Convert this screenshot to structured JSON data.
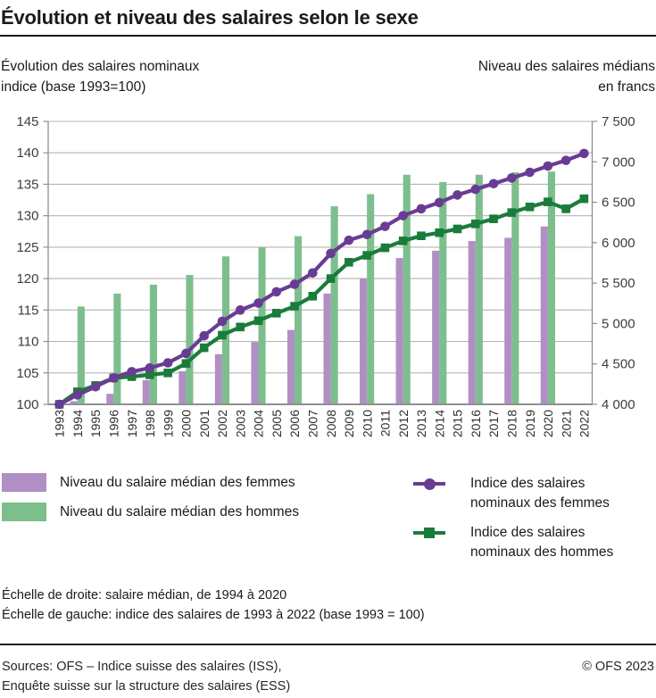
{
  "title": "Évolution et niveau des salaires selon le sexe",
  "axis_titles": {
    "left_line1": "Évolution des salaires nominaux",
    "left_line2": "indice (base 1993=100)",
    "right_line1": "Niveau des salaires médians",
    "right_line2": "en francs"
  },
  "chart_data": {
    "type": "bar+line combo",
    "x": [
      1993,
      1994,
      1995,
      1996,
      1997,
      1998,
      1999,
      2000,
      2001,
      2002,
      2003,
      2004,
      2005,
      2006,
      2007,
      2008,
      2009,
      2010,
      2011,
      2012,
      2013,
      2014,
      2015,
      2016,
      2017,
      2018,
      2019,
      2020,
      2021,
      2022
    ],
    "left_axis": {
      "min": 100,
      "max": 145,
      "step": 5,
      "ticks": [
        100,
        105,
        110,
        115,
        120,
        125,
        130,
        135,
        140,
        145
      ]
    },
    "right_axis": {
      "min": 4000,
      "max": 7500,
      "step": 500,
      "tick_labels": [
        "4 000",
        "4 500",
        "5 000",
        "5 500",
        "6 000",
        "6 500",
        "7 000",
        "7 500"
      ]
    },
    "grid": true,
    "legend_position": "bottom",
    "series": [
      {
        "name": "Niveau du salaire médian des femmes",
        "type": "bar",
        "axis": "right",
        "color": "#b18fc4",
        "x": [
          1994,
          1996,
          1998,
          2000,
          2002,
          2004,
          2006,
          2008,
          2010,
          2012,
          2014,
          2016,
          2018,
          2020
        ],
        "values": [
          4040,
          4130,
          4300,
          4410,
          4620,
          4770,
          4920,
          5370,
          5560,
          5810,
          5900,
          6020,
          6060,
          6200
        ]
      },
      {
        "name": "Niveau du salaire médian des hommes",
        "type": "bar",
        "axis": "right",
        "color": "#7dbe8d",
        "x": [
          1994,
          1996,
          1998,
          2000,
          2002,
          2004,
          2006,
          2008,
          2010,
          2012,
          2014,
          2016,
          2018,
          2020
        ],
        "values": [
          5210,
          5370,
          5480,
          5600,
          5830,
          5940,
          6080,
          6450,
          6600,
          6840,
          6750,
          6840,
          6870,
          6880
        ]
      },
      {
        "name": "Indice des salaires nominaux des femmes",
        "type": "line",
        "axis": "left",
        "color": "#693c94",
        "marker": "circle",
        "x": [
          1993,
          1994,
          1995,
          1996,
          1997,
          1998,
          1999,
          2000,
          2001,
          2002,
          2003,
          2004,
          2005,
          2006,
          2007,
          2008,
          2009,
          2010,
          2011,
          2012,
          2013,
          2014,
          2015,
          2016,
          2017,
          2018,
          2019,
          2020,
          2021,
          2022
        ],
        "values": [
          100,
          101.5,
          102.8,
          104.2,
          105.2,
          105.8,
          106.6,
          108.1,
          110.9,
          113.2,
          115.0,
          116.1,
          117.9,
          119.1,
          120.9,
          124.0,
          126.1,
          127.0,
          128.3,
          130.0,
          131.1,
          132.1,
          133.3,
          134.2,
          135.1,
          136.0,
          136.9,
          137.9,
          138.8,
          139.9
        ]
      },
      {
        "name": "Indice des salaires nominaux des hommes",
        "type": "line",
        "axis": "left",
        "color": "#1a7c3a",
        "marker": "square",
        "x": [
          1993,
          1994,
          1995,
          1996,
          1997,
          1998,
          1999,
          2000,
          2001,
          2002,
          2003,
          2004,
          2005,
          2006,
          2007,
          2008,
          2009,
          2010,
          2011,
          2012,
          2013,
          2014,
          2015,
          2016,
          2017,
          2018,
          2019,
          2020,
          2021,
          2022
        ],
        "values": [
          100,
          102.0,
          103.0,
          104.2,
          104.4,
          104.7,
          105.0,
          106.5,
          109.0,
          111.0,
          112.3,
          113.3,
          114.5,
          115.6,
          117.2,
          120.0,
          122.6,
          123.7,
          124.9,
          126.0,
          126.8,
          127.3,
          127.9,
          128.7,
          129.5,
          130.5,
          131.4,
          132.2,
          131.1,
          132.7
        ]
      }
    ]
  },
  "legend": {
    "bars": [
      {
        "label": "Niveau du salaire médian des femmes",
        "color": "#b18fc4"
      },
      {
        "label": "Niveau du salaire médian des hommes",
        "color": "#7dbe8d"
      }
    ],
    "lines": [
      {
        "label_line1": "Indice des salaires",
        "label_line2": "nominaux des femmes",
        "color": "#693c94",
        "marker": "circle"
      },
      {
        "label_line1": "Indice des salaires",
        "label_line2": "nominaux des hommes",
        "color": "#1a7c3a",
        "marker": "square"
      }
    ]
  },
  "footnotes": [
    "Échelle de droite: salaire médian, de 1994 à 2020",
    "Échelle de gauche: indice des salaires de 1993 à 2022 (base 1993 = 100)"
  ],
  "source": {
    "line1": "Sources: OFS – Indice suisse des salaires (ISS),",
    "line2": "Enquête suisse sur la structure des salaires (ESS)",
    "copyright": "© OFS 2023"
  },
  "colors": {
    "grid": "#b5b5b5",
    "spine": "#8f8f8f",
    "text": "#1a1a1a"
  }
}
